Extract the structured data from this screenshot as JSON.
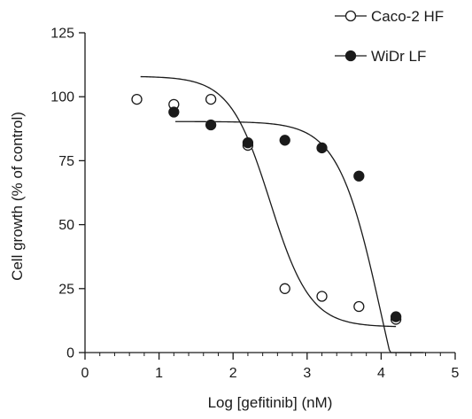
{
  "chart_data": {
    "type": "scatter",
    "xlabel": "Log [gefitinib] (nM)",
    "ylabel": "Cell growth (% of control)",
    "xlim": [
      0,
      5
    ],
    "ylim": [
      0,
      125
    ],
    "xticks": [
      "0",
      "1",
      "2",
      "3",
      "4",
      "5"
    ],
    "yticks": [
      "0",
      "25",
      "50",
      "75",
      "100",
      "125"
    ],
    "x_minor_ticks_per_major": 5,
    "grid": false,
    "legend_position": "top-right",
    "series": [
      {
        "name": "Caco-2 HF",
        "marker": "open-circle",
        "points": [
          {
            "x": 0.7,
            "y": 99
          },
          {
            "x": 1.2,
            "y": 97
          },
          {
            "x": 1.7,
            "y": 99
          },
          {
            "x": 2.2,
            "y": 81
          },
          {
            "x": 2.7,
            "y": 25
          },
          {
            "x": 3.2,
            "y": 22
          },
          {
            "x": 3.7,
            "y": 18
          },
          {
            "x": 4.2,
            "y": 13
          }
        ],
        "fit_curve": {
          "x_range": [
            0.75,
            4.2
          ],
          "top": 108,
          "bottom": 10,
          "log_ec50": 2.5,
          "hill": 1.6
        }
      },
      {
        "name": "WiDr LF",
        "marker": "filled-circle",
        "points": [
          {
            "x": 1.2,
            "y": 94
          },
          {
            "x": 1.7,
            "y": 89
          },
          {
            "x": 2.2,
            "y": 82
          },
          {
            "x": 2.7,
            "y": 83
          },
          {
            "x": 3.2,
            "y": 80
          },
          {
            "x": 3.7,
            "y": 69
          },
          {
            "x": 4.2,
            "y": 14
          }
        ],
        "fit_curve": {
          "x_range": [
            1.22,
            4.57
          ],
          "top": 90.3,
          "bottom": -60,
          "log_ec50": 4.0,
          "hill": 1.5
        }
      }
    ]
  }
}
